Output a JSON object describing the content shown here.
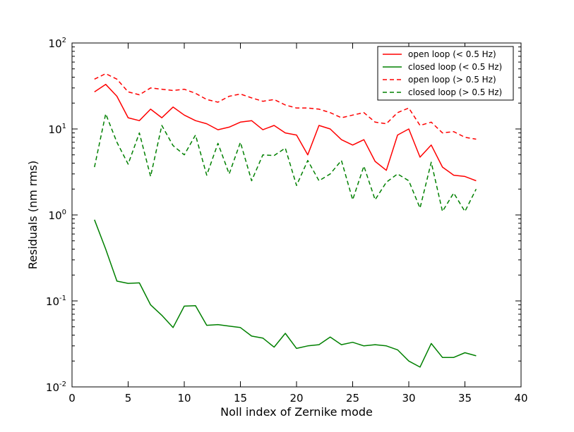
{
  "chart_data": {
    "type": "line",
    "title": "",
    "xlabel": "Noll index of Zernike mode",
    "ylabel": "Residuals (nm rms)",
    "xlim": [
      0,
      40
    ],
    "ylim": [
      0.01,
      100
    ],
    "yscale": "log",
    "grid": false,
    "legend_position": "top-right",
    "x_ticks": [
      "0",
      "5",
      "10",
      "15",
      "20",
      "25",
      "30",
      "35",
      "40"
    ],
    "y_ticks": [
      {
        "base": "10",
        "exp": "-2",
        "value": 0.01
      },
      {
        "base": "10",
        "exp": "-1",
        "value": 0.1
      },
      {
        "base": "10",
        "exp": "0",
        "value": 1
      },
      {
        "base": "10",
        "exp": "1",
        "value": 10
      },
      {
        "base": "10",
        "exp": "2",
        "value": 100
      }
    ],
    "x": [
      2,
      3,
      4,
      5,
      6,
      7,
      8,
      9,
      10,
      11,
      12,
      13,
      14,
      15,
      16,
      17,
      18,
      19,
      20,
      21,
      22,
      23,
      24,
      25,
      26,
      27,
      28,
      29,
      30,
      31,
      32,
      33,
      34,
      35,
      36
    ],
    "series": [
      {
        "name": "open loop (< 0.5 Hz)",
        "color": "#ff0000",
        "dash": "solid",
        "values": [
          27,
          33,
          24,
          13.5,
          12.5,
          17,
          13.5,
          18,
          14.5,
          12.5,
          11.5,
          9.8,
          10.5,
          12,
          12.5,
          9.8,
          11,
          9,
          8.5,
          5,
          11,
          10,
          7.5,
          6.5,
          7.5,
          4.2,
          3.3,
          8.5,
          10,
          4.7,
          6.5,
          3.6,
          2.9,
          2.8,
          2.5
        ]
      },
      {
        "name": "closed loop (< 0.5 Hz)",
        "color": "#008000",
        "dash": "solid",
        "values": [
          0.88,
          0.4,
          0.17,
          0.16,
          0.162,
          0.09,
          0.068,
          0.049,
          0.087,
          0.088,
          0.052,
          0.053,
          0.051,
          0.049,
          0.039,
          0.037,
          0.029,
          0.042,
          0.028,
          0.03,
          0.031,
          0.038,
          0.031,
          0.033,
          0.03,
          0.031,
          0.03,
          0.027,
          0.02,
          0.017,
          0.032,
          0.022,
          0.022,
          0.025,
          0.023
        ]
      },
      {
        "name": "open loop (> 0.5 Hz)",
        "color": "#ff0000",
        "dash": "dashed",
        "values": [
          38,
          44,
          38,
          27,
          25,
          30,
          29,
          28,
          29,
          26,
          22,
          20.5,
          24,
          25.5,
          23,
          21,
          22,
          19,
          17.5,
          17.5,
          17,
          15.5,
          13.5,
          14.5,
          15.5,
          12,
          11.5,
          15.5,
          17.5,
          11,
          12,
          9,
          9.3,
          8,
          7.6
        ]
      },
      {
        "name": "closed loop (> 0.5 Hz)",
        "color": "#008000",
        "dash": "dashed",
        "values": [
          3.6,
          15,
          7,
          3.9,
          9,
          2.8,
          11,
          6.4,
          5,
          8.5,
          2.9,
          6.8,
          3,
          7,
          2.5,
          5,
          4.9,
          6,
          2.2,
          4.3,
          2.5,
          3,
          4.3,
          1.5,
          3.7,
          1.5,
          2.4,
          3,
          2.5,
          1.2,
          4.1,
          1.1,
          1.8,
          1.1,
          2
        ]
      }
    ]
  }
}
